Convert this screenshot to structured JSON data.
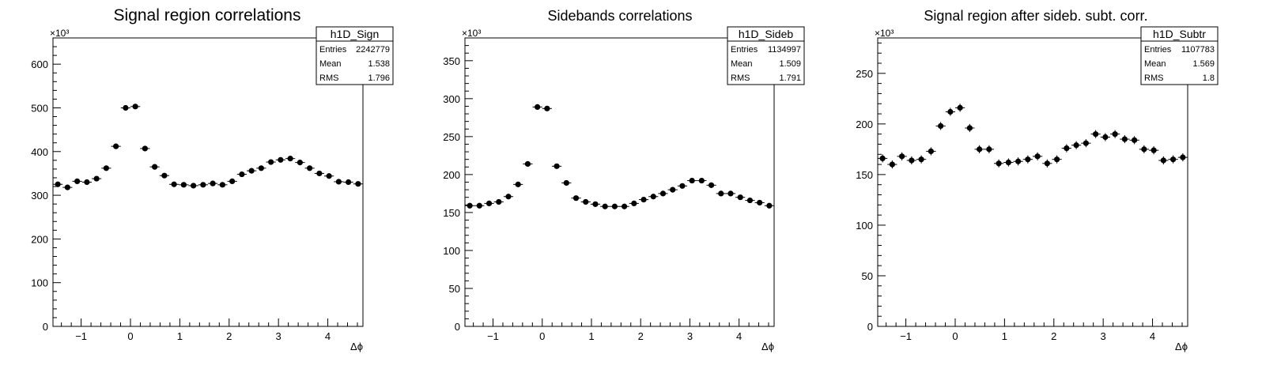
{
  "chart_data": [
    {
      "type": "scatter",
      "title": "Signal region correlations",
      "xlabel": "Δϕ",
      "ylabel": "",
      "y_multiplier": "×10³",
      "xlim": [
        -1.5708,
        4.7124
      ],
      "ylim": [
        0,
        660
      ],
      "x_ticks": [
        -1,
        0,
        1,
        2,
        3,
        4
      ],
      "y_ticks": [
        0,
        100,
        200,
        300,
        400,
        500,
        600
      ],
      "stats": {
        "name": "h1D_Sign",
        "rows": [
          [
            "Entries",
            "2242779"
          ],
          [
            "Mean",
            "1.538"
          ],
          [
            "RMS",
            "1.796"
          ]
        ]
      },
      "x": [
        -1.4726,
        -1.2763,
        -1.0799,
        -0.8836,
        -0.6872,
        -0.4909,
        -0.2945,
        -0.0982,
        0.0982,
        0.2945,
        0.4909,
        0.6872,
        0.8836,
        1.0799,
        1.2763,
        1.4726,
        1.669,
        1.8653,
        2.0617,
        2.258,
        2.4544,
        2.6507,
        2.8471,
        3.0434,
        3.2398,
        3.4361,
        3.6325,
        3.8288,
        4.0252,
        4.2215,
        4.4179,
        4.6142
      ],
      "values": [
        325,
        318,
        332,
        330,
        338,
        362,
        412,
        500,
        503,
        407,
        365,
        345,
        325,
        324,
        322,
        324,
        327,
        324,
        332,
        348,
        356,
        362,
        376,
        381,
        384,
        375,
        362,
        350,
        344,
        331,
        330,
        326
      ],
      "y_errors": [
        1.5,
        1.5,
        1.5,
        1.5,
        1.5,
        1.5,
        1.5,
        1.5,
        1.5,
        1.5,
        1.5,
        1.5,
        1.5,
        1.5,
        1.5,
        1.5,
        1.5,
        1.5,
        1.5,
        1.5,
        1.5,
        1.5,
        1.5,
        1.5,
        1.5,
        1.5,
        1.5,
        1.5,
        1.5,
        1.5,
        1.5,
        1.5
      ],
      "grid": false
    },
    {
      "type": "scatter",
      "title": "Sidebands correlations",
      "xlabel": "Δϕ",
      "ylabel": "",
      "y_multiplier": "×10³",
      "xlim": [
        -1.5708,
        4.7124
      ],
      "ylim": [
        0,
        380
      ],
      "x_ticks": [
        -1,
        0,
        1,
        2,
        3,
        4
      ],
      "y_ticks": [
        0,
        50,
        100,
        150,
        200,
        250,
        300,
        350
      ],
      "stats": {
        "name": "h1D_Sideb",
        "rows": [
          [
            "Entries",
            "1134997"
          ],
          [
            "Mean",
            "1.509"
          ],
          [
            "RMS",
            "1.791"
          ]
        ]
      },
      "x": [
        -1.4726,
        -1.2763,
        -1.0799,
        -0.8836,
        -0.6872,
        -0.4909,
        -0.2945,
        -0.0982,
        0.0982,
        0.2945,
        0.4909,
        0.6872,
        0.8836,
        1.0799,
        1.2763,
        1.4726,
        1.669,
        1.8653,
        2.0617,
        2.258,
        2.4544,
        2.6507,
        2.8471,
        3.0434,
        3.2398,
        3.4361,
        3.6325,
        3.8288,
        4.0252,
        4.2215,
        4.4179,
        4.6142
      ],
      "values": [
        159,
        159,
        162,
        164,
        171,
        187,
        214,
        289,
        287,
        211,
        189,
        169,
        164,
        161,
        158,
        158,
        158,
        162,
        167,
        171,
        175,
        180,
        185,
        192,
        192,
        186,
        175,
        175,
        170,
        166,
        163,
        159
      ],
      "y_errors": [
        1,
        1,
        1,
        1,
        1,
        1,
        1,
        1,
        1,
        1,
        1,
        1,
        1,
        1,
        1,
        1,
        1,
        1,
        1,
        1,
        1,
        1,
        1,
        1,
        1,
        1,
        1,
        1,
        1,
        1,
        1,
        1
      ],
      "grid": false
    },
    {
      "type": "scatter",
      "title": "Signal region after sideb. subt. corr.",
      "xlabel": "Δϕ",
      "ylabel": "",
      "y_multiplier": "×10³",
      "xlim": [
        -1.5708,
        4.7124
      ],
      "ylim": [
        0,
        285
      ],
      "x_ticks": [
        -1,
        0,
        1,
        2,
        3,
        4
      ],
      "y_ticks": [
        0,
        50,
        100,
        150,
        200,
        250
      ],
      "stats": {
        "name": "h1D_Subtr",
        "rows": [
          [
            "Entries",
            "1107783"
          ],
          [
            "Mean",
            "1.569"
          ],
          [
            "RMS",
            "1.8"
          ]
        ]
      },
      "x": [
        -1.4726,
        -1.2763,
        -1.0799,
        -0.8836,
        -0.6872,
        -0.4909,
        -0.2945,
        -0.0982,
        0.0982,
        0.2945,
        0.4909,
        0.6872,
        0.8836,
        1.0799,
        1.2763,
        1.4726,
        1.669,
        1.8653,
        2.0617,
        2.258,
        2.4544,
        2.6507,
        2.8471,
        3.0434,
        3.2398,
        3.4361,
        3.6325,
        3.8288,
        4.0252,
        4.2215,
        4.4179,
        4.6142
      ],
      "values": [
        166,
        160,
        168,
        164,
        165,
        173,
        198,
        212,
        216,
        196,
        175,
        175,
        161,
        162,
        163,
        165,
        168,
        161,
        165,
        176,
        179,
        181,
        190,
        187,
        190,
        185,
        184,
        175,
        174,
        164,
        165,
        167
      ],
      "y_errors": [
        4,
        4,
        4,
        4,
        4,
        4,
        4,
        4,
        4,
        4,
        4,
        4,
        4,
        4,
        4,
        4,
        4,
        4,
        4,
        4,
        4,
        4,
        4,
        4,
        4,
        4,
        4,
        4,
        4,
        4,
        4,
        4
      ],
      "grid": false
    }
  ]
}
